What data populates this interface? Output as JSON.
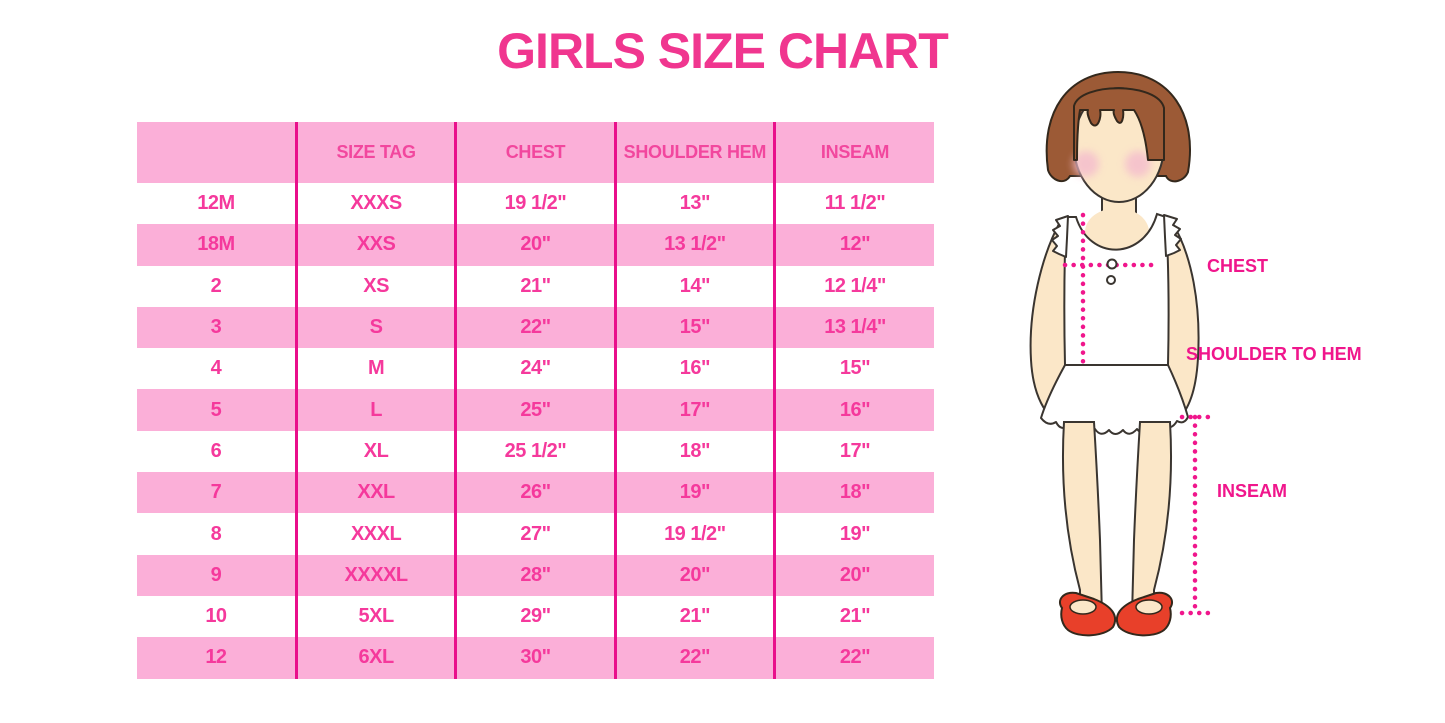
{
  "page": {
    "title": "GIRLS SIZE CHART"
  },
  "colors": {
    "title_pink": "#F0368F",
    "row_band_pink": "#FBAFD8",
    "grid_line_magenta": "#E90F8B",
    "cell_text_pink": "#F5399C",
    "measure_line_magenta": "#F0168C",
    "hair_brown": "#9C5A36",
    "skin": "#FBE7C8",
    "blush": "#F4BCCD",
    "shoe_red": "#E8402A"
  },
  "table": {
    "headers": [
      "",
      "SIZE TAG",
      "CHEST",
      "SHOULDER HEM",
      "INSEAM"
    ],
    "rows": [
      [
        "12M",
        "XXXS",
        "19 1/2\"",
        "13\"",
        "11 1/2\""
      ],
      [
        "18M",
        "XXS",
        "20\"",
        "13 1/2\"",
        "12\""
      ],
      [
        "2",
        "XS",
        "21\"",
        "14\"",
        "12 1/4\""
      ],
      [
        "3",
        "S",
        "22\"",
        "15\"",
        "13 1/4\""
      ],
      [
        "4",
        "M",
        "24\"",
        "16\"",
        "15\""
      ],
      [
        "5",
        "L",
        "25\"",
        "17\"",
        "16\""
      ],
      [
        "6",
        "XL",
        "25 1/2\"",
        "18\"",
        "17\""
      ],
      [
        "7",
        "XXL",
        "26\"",
        "19\"",
        "18\""
      ],
      [
        "8",
        "XXXL",
        "27\"",
        "19 1/2\"",
        "19\""
      ],
      [
        "9",
        "XXXXL",
        "28\"",
        "20\"",
        "20\""
      ],
      [
        "10",
        "5XL",
        "29\"",
        "21\"",
        "21\""
      ],
      [
        "12",
        "6XL",
        "30\"",
        "22\"",
        "22\""
      ]
    ]
  },
  "figure": {
    "labels": {
      "chest": "CHEST",
      "shoulder_to_hem": "SHOULDER TO HEM",
      "inseam": "INSEAM"
    }
  }
}
